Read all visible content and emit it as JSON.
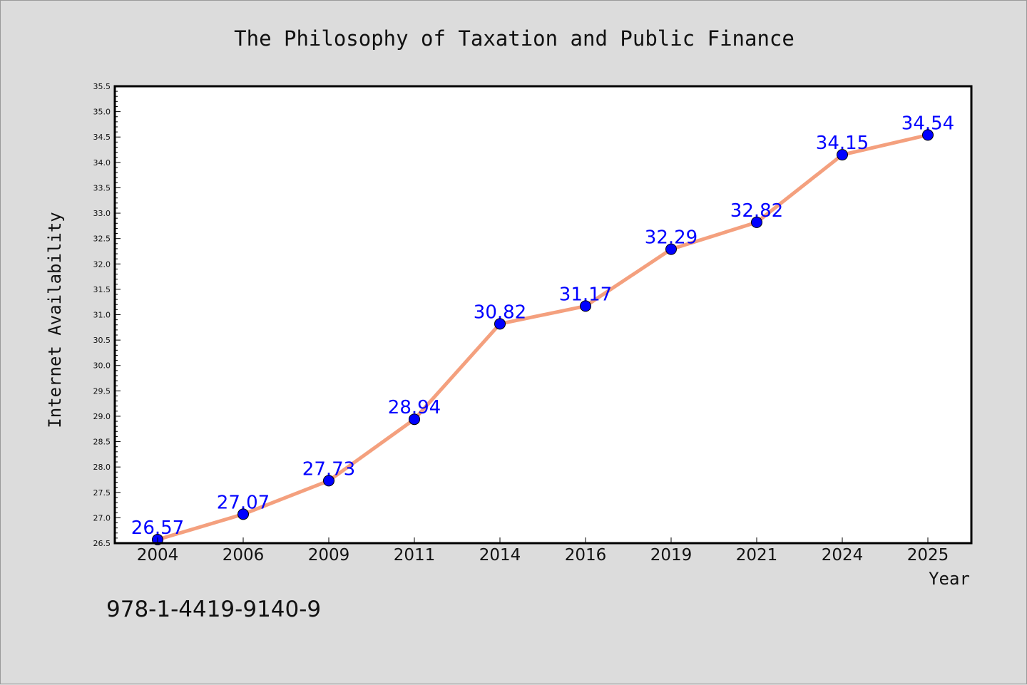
{
  "chart_data": {
    "type": "line",
    "title": "The Philosophy of Taxation and Public Finance",
    "xlabel": "Year",
    "ylabel": "Internet Availability",
    "categories": [
      "2004",
      "2006",
      "2009",
      "2011",
      "2014",
      "2016",
      "2019",
      "2021",
      "2024",
      "2025"
    ],
    "series": [
      {
        "values": [
          26.57,
          27.07,
          27.73,
          28.94,
          30.82,
          31.17,
          32.29,
          32.82,
          34.15,
          34.54
        ],
        "labels": [
          "26.57",
          "27.07",
          "27.73",
          "28.94",
          "30.82",
          "31.17",
          "32.29",
          "32.82",
          "34.15",
          "34.54"
        ],
        "line_color": "#f4a07e",
        "marker_color": "#0000ff"
      }
    ],
    "ylim": [
      26.5,
      35.5
    ],
    "yticks": [
      "26.5",
      "27.0",
      "27.5",
      "28.0",
      "28.5",
      "29.0",
      "29.5",
      "30.0",
      "30.5",
      "31.0",
      "31.5",
      "32.0",
      "32.5",
      "33.0",
      "33.5",
      "34.0",
      "34.5",
      "35.0",
      "35.5"
    ],
    "grid": false,
    "legend": "none"
  },
  "footer": {
    "text": "978-1-4419-9140-9"
  },
  "colors": {
    "background": "#dcdcdc",
    "plot_background": "#ffffff",
    "line": "#f4a07e",
    "marker": "#0000ff",
    "data_label": "#0000ff"
  }
}
